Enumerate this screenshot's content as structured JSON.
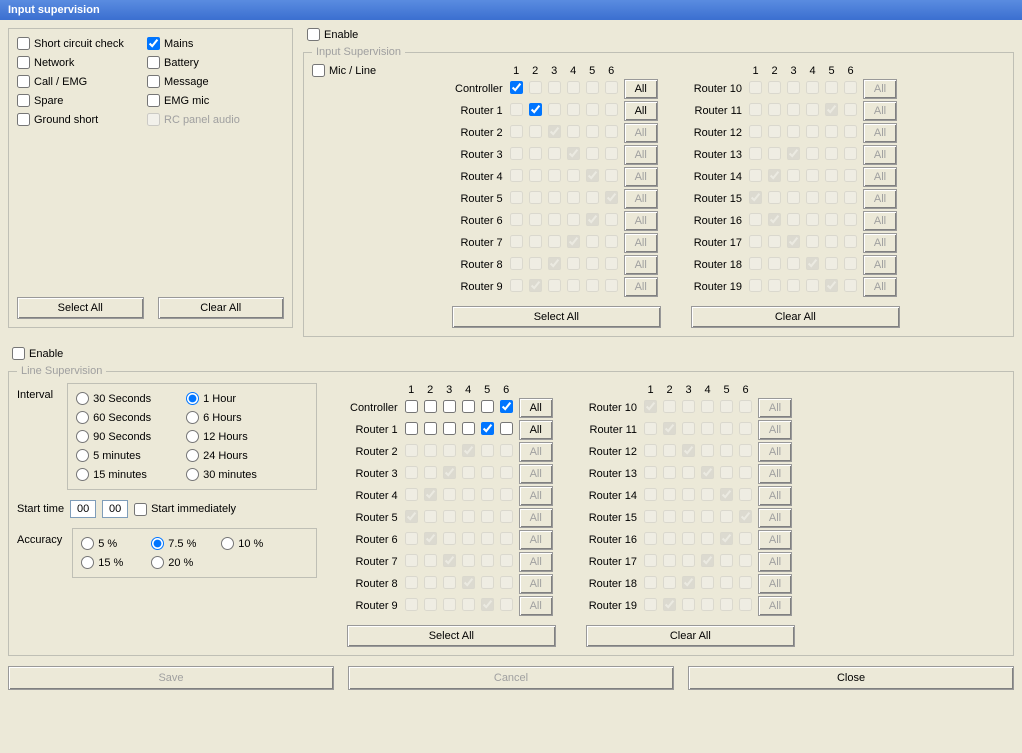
{
  "window": {
    "title": "Input supervision"
  },
  "colors": {
    "panel_bg": "#ece9d8",
    "titlebar_from": "#5a8ce0",
    "titlebar_to": "#3b6fd0",
    "border": "#bfbfb5",
    "disabled": "#a0a0a0"
  },
  "options": {
    "items": [
      {
        "label": "Short circuit check",
        "checked": false
      },
      {
        "label": "Mains",
        "checked": true
      },
      {
        "label": "Network",
        "checked": false
      },
      {
        "label": "Battery",
        "checked": false
      },
      {
        "label": "Call / EMG",
        "checked": false
      },
      {
        "label": "Message",
        "checked": false
      },
      {
        "label": "Spare",
        "checked": false
      },
      {
        "label": "EMG mic",
        "checked": false
      },
      {
        "label": "Ground short",
        "checked": false
      },
      {
        "label": "RC panel audio",
        "checked": false,
        "disabled": true
      }
    ],
    "select_all": "Select All",
    "clear_all": "Clear All"
  },
  "common": {
    "select_all": "Select All",
    "clear_all": "Clear All",
    "all": "All",
    "enable": "Enable"
  },
  "input_supervision": {
    "legend": "Input Supervision",
    "enable_checked": false,
    "mic_line": {
      "label": "Mic / Line",
      "checked": false
    },
    "columns": [
      "1",
      "2",
      "3",
      "4",
      "5",
      "6"
    ],
    "left_rows": [
      {
        "label": "Controller",
        "cells": [
          {
            "c": true
          },
          {
            "g": false
          },
          {
            "g": false
          },
          {
            "g": false
          },
          {
            "g": false
          },
          {
            "g": false
          }
        ],
        "all_enabled": true
      },
      {
        "label": "Router 1",
        "cells": [
          {
            "g": false
          },
          {
            "c": true
          },
          {
            "g": false
          },
          {
            "g": false
          },
          {
            "g": false
          },
          {
            "g": false
          }
        ],
        "all_enabled": true
      },
      {
        "label": "Router 2",
        "cells": [
          {
            "g": false
          },
          {
            "g": false
          },
          {
            "g": true
          },
          {
            "g": false
          },
          {
            "g": false
          },
          {
            "g": false
          }
        ],
        "all_enabled": false
      },
      {
        "label": "Router 3",
        "cells": [
          {
            "g": false
          },
          {
            "g": false
          },
          {
            "g": false
          },
          {
            "g": true
          },
          {
            "g": false
          },
          {
            "g": false
          }
        ],
        "all_enabled": false
      },
      {
        "label": "Router 4",
        "cells": [
          {
            "g": false
          },
          {
            "g": false
          },
          {
            "g": false
          },
          {
            "g": false
          },
          {
            "g": true
          },
          {
            "g": false
          }
        ],
        "all_enabled": false
      },
      {
        "label": "Router 5",
        "cells": [
          {
            "g": false
          },
          {
            "g": false
          },
          {
            "g": false
          },
          {
            "g": false
          },
          {
            "g": false
          },
          {
            "g": true
          }
        ],
        "all_enabled": false
      },
      {
        "label": "Router 6",
        "cells": [
          {
            "g": false
          },
          {
            "g": false
          },
          {
            "g": false
          },
          {
            "g": false
          },
          {
            "g": true
          },
          {
            "g": false
          }
        ],
        "all_enabled": false
      },
      {
        "label": "Router 7",
        "cells": [
          {
            "g": false
          },
          {
            "g": false
          },
          {
            "g": false
          },
          {
            "g": true
          },
          {
            "g": false
          },
          {
            "g": false
          }
        ],
        "all_enabled": false
      },
      {
        "label": "Router 8",
        "cells": [
          {
            "g": false
          },
          {
            "g": false
          },
          {
            "g": true
          },
          {
            "g": false
          },
          {
            "g": false
          },
          {
            "g": false
          }
        ],
        "all_enabled": false
      },
      {
        "label": "Router 9",
        "cells": [
          {
            "g": false
          },
          {
            "g": true
          },
          {
            "g": false
          },
          {
            "g": false
          },
          {
            "g": false
          },
          {
            "g": false
          }
        ],
        "all_enabled": false
      }
    ],
    "right_rows": [
      {
        "label": "Router 10",
        "cells": [
          {
            "g": false
          },
          {
            "g": false
          },
          {
            "g": false
          },
          {
            "g": false
          },
          {
            "g": false
          },
          {
            "g": false
          }
        ],
        "all_enabled": false
      },
      {
        "label": "Router 11",
        "cells": [
          {
            "g": false
          },
          {
            "g": false
          },
          {
            "g": false
          },
          {
            "g": false
          },
          {
            "g": true
          },
          {
            "g": false
          }
        ],
        "all_enabled": false
      },
      {
        "label": "Router 12",
        "cells": [
          {
            "g": false
          },
          {
            "g": false
          },
          {
            "g": false
          },
          {
            "g": false
          },
          {
            "g": false
          },
          {
            "g": false
          }
        ],
        "all_enabled": false
      },
      {
        "label": "Router 13",
        "cells": [
          {
            "g": false
          },
          {
            "g": false
          },
          {
            "g": true
          },
          {
            "g": false
          },
          {
            "g": false
          },
          {
            "g": false
          }
        ],
        "all_enabled": false
      },
      {
        "label": "Router 14",
        "cells": [
          {
            "g": false
          },
          {
            "g": true
          },
          {
            "g": false
          },
          {
            "g": false
          },
          {
            "g": false
          },
          {
            "g": false
          }
        ],
        "all_enabled": false
      },
      {
        "label": "Router 15",
        "cells": [
          {
            "g": true
          },
          {
            "g": false
          },
          {
            "g": false
          },
          {
            "g": false
          },
          {
            "g": false
          },
          {
            "g": false
          }
        ],
        "all_enabled": false
      },
      {
        "label": "Router 16",
        "cells": [
          {
            "g": false
          },
          {
            "g": true
          },
          {
            "g": false
          },
          {
            "g": false
          },
          {
            "g": false
          },
          {
            "g": false
          }
        ],
        "all_enabled": false
      },
      {
        "label": "Router 17",
        "cells": [
          {
            "g": false
          },
          {
            "g": false
          },
          {
            "g": true
          },
          {
            "g": false
          },
          {
            "g": false
          },
          {
            "g": false
          }
        ],
        "all_enabled": false
      },
      {
        "label": "Router 18",
        "cells": [
          {
            "g": false
          },
          {
            "g": false
          },
          {
            "g": false
          },
          {
            "g": true
          },
          {
            "g": false
          },
          {
            "g": false
          }
        ],
        "all_enabled": false
      },
      {
        "label": "Router 19",
        "cells": [
          {
            "g": false
          },
          {
            "g": false
          },
          {
            "g": false
          },
          {
            "g": false
          },
          {
            "g": true
          },
          {
            "g": false
          }
        ],
        "all_enabled": false
      }
    ]
  },
  "line_supervision": {
    "legend": "Line Supervision",
    "enable_checked": false,
    "interval_label": "Interval",
    "intervals": [
      {
        "label": "30 Seconds",
        "checked": false
      },
      {
        "label": "1 Hour",
        "checked": true
      },
      {
        "label": "60 Seconds",
        "checked": false
      },
      {
        "label": "6 Hours",
        "checked": false
      },
      {
        "label": "90 Seconds",
        "checked": false
      },
      {
        "label": "12 Hours",
        "checked": false
      },
      {
        "label": "5 minutes",
        "checked": false
      },
      {
        "label": "24 Hours",
        "checked": false
      },
      {
        "label": "15 minutes",
        "checked": false
      },
      {
        "label": "30 minutes",
        "checked": false
      }
    ],
    "start_time_label": "Start time",
    "start_h": "00",
    "start_m": "00",
    "start_immediately": {
      "label": "Start immediately",
      "checked": false
    },
    "accuracy_label": "Accuracy",
    "accuracy": [
      {
        "label": "5 %",
        "checked": false
      },
      {
        "label": "7.5 %",
        "checked": true
      },
      {
        "label": "10 %",
        "checked": false
      },
      {
        "label": "15 %",
        "checked": false
      },
      {
        "label": "20 %",
        "checked": false
      }
    ],
    "columns": [
      "1",
      "2",
      "3",
      "4",
      "5",
      "6"
    ],
    "left_rows": [
      {
        "label": "Controller",
        "cells": [
          {
            "c": false
          },
          {
            "c": false
          },
          {
            "c": false
          },
          {
            "c": false
          },
          {
            "c": false
          },
          {
            "c": true
          }
        ],
        "all_enabled": true
      },
      {
        "label": "Router 1",
        "cells": [
          {
            "c": false
          },
          {
            "c": false
          },
          {
            "c": false
          },
          {
            "c": false
          },
          {
            "c": true
          },
          {
            "c": false
          }
        ],
        "all_enabled": true
      },
      {
        "label": "Router 2",
        "cells": [
          {
            "g": false
          },
          {
            "g": false
          },
          {
            "g": false
          },
          {
            "g": true
          },
          {
            "g": false
          },
          {
            "g": false
          }
        ],
        "all_enabled": false
      },
      {
        "label": "Router 3",
        "cells": [
          {
            "g": false
          },
          {
            "g": false
          },
          {
            "g": true
          },
          {
            "g": false
          },
          {
            "g": false
          },
          {
            "g": false
          }
        ],
        "all_enabled": false
      },
      {
        "label": "Router 4",
        "cells": [
          {
            "g": false
          },
          {
            "g": true
          },
          {
            "g": false
          },
          {
            "g": false
          },
          {
            "g": false
          },
          {
            "g": false
          }
        ],
        "all_enabled": false
      },
      {
        "label": "Router 5",
        "cells": [
          {
            "g": true
          },
          {
            "g": false
          },
          {
            "g": false
          },
          {
            "g": false
          },
          {
            "g": false
          },
          {
            "g": false
          }
        ],
        "all_enabled": false
      },
      {
        "label": "Router 6",
        "cells": [
          {
            "g": false
          },
          {
            "g": true
          },
          {
            "g": false
          },
          {
            "g": false
          },
          {
            "g": false
          },
          {
            "g": false
          }
        ],
        "all_enabled": false
      },
      {
        "label": "Router 7",
        "cells": [
          {
            "g": false
          },
          {
            "g": false
          },
          {
            "g": true
          },
          {
            "g": false
          },
          {
            "g": false
          },
          {
            "g": false
          }
        ],
        "all_enabled": false
      },
      {
        "label": "Router 8",
        "cells": [
          {
            "g": false
          },
          {
            "g": false
          },
          {
            "g": false
          },
          {
            "g": true
          },
          {
            "g": false
          },
          {
            "g": false
          }
        ],
        "all_enabled": false
      },
      {
        "label": "Router 9",
        "cells": [
          {
            "g": false
          },
          {
            "g": false
          },
          {
            "g": false
          },
          {
            "g": false
          },
          {
            "g": true
          },
          {
            "g": false
          }
        ],
        "all_enabled": false
      }
    ],
    "right_rows": [
      {
        "label": "Router 10",
        "cells": [
          {
            "g": true
          },
          {
            "g": false
          },
          {
            "g": false
          },
          {
            "g": false
          },
          {
            "g": false
          },
          {
            "g": false
          }
        ],
        "all_enabled": false
      },
      {
        "label": "Router 11",
        "cells": [
          {
            "g": false
          },
          {
            "g": true
          },
          {
            "g": false
          },
          {
            "g": false
          },
          {
            "g": false
          },
          {
            "g": false
          }
        ],
        "all_enabled": false
      },
      {
        "label": "Router 12",
        "cells": [
          {
            "g": false
          },
          {
            "g": false
          },
          {
            "g": true
          },
          {
            "g": false
          },
          {
            "g": false
          },
          {
            "g": false
          }
        ],
        "all_enabled": false
      },
      {
        "label": "Router 13",
        "cells": [
          {
            "g": false
          },
          {
            "g": false
          },
          {
            "g": false
          },
          {
            "g": true
          },
          {
            "g": false
          },
          {
            "g": false
          }
        ],
        "all_enabled": false
      },
      {
        "label": "Router 14",
        "cells": [
          {
            "g": false
          },
          {
            "g": false
          },
          {
            "g": false
          },
          {
            "g": false
          },
          {
            "g": true
          },
          {
            "g": false
          }
        ],
        "all_enabled": false
      },
      {
        "label": "Router 15",
        "cells": [
          {
            "g": false
          },
          {
            "g": false
          },
          {
            "g": false
          },
          {
            "g": false
          },
          {
            "g": false
          },
          {
            "g": true
          }
        ],
        "all_enabled": false
      },
      {
        "label": "Router 16",
        "cells": [
          {
            "g": false
          },
          {
            "g": false
          },
          {
            "g": false
          },
          {
            "g": false
          },
          {
            "g": true
          },
          {
            "g": false
          }
        ],
        "all_enabled": false
      },
      {
        "label": "Router 17",
        "cells": [
          {
            "g": false
          },
          {
            "g": false
          },
          {
            "g": false
          },
          {
            "g": true
          },
          {
            "g": false
          },
          {
            "g": false
          }
        ],
        "all_enabled": false
      },
      {
        "label": "Router 18",
        "cells": [
          {
            "g": false
          },
          {
            "g": false
          },
          {
            "g": true
          },
          {
            "g": false
          },
          {
            "g": false
          },
          {
            "g": false
          }
        ],
        "all_enabled": false
      },
      {
        "label": "Router 19",
        "cells": [
          {
            "g": false
          },
          {
            "g": true
          },
          {
            "g": false
          },
          {
            "g": false
          },
          {
            "g": false
          },
          {
            "g": false
          }
        ],
        "all_enabled": false
      }
    ]
  },
  "footer": {
    "save": "Save",
    "cancel": "Cancel",
    "close": "Close"
  }
}
